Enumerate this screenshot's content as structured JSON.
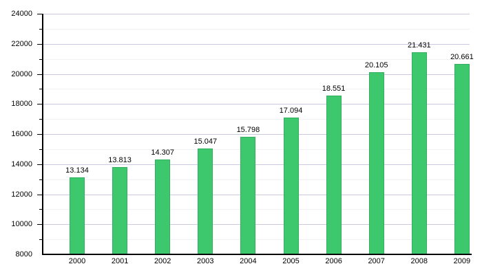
{
  "chart_data": {
    "type": "bar",
    "title": "",
    "xlabel": "",
    "ylabel": "",
    "categories": [
      "2000",
      "2001",
      "2002",
      "2003",
      "2004",
      "2005",
      "2006",
      "2007",
      "2008",
      "2009"
    ],
    "values": [
      13134,
      13813,
      14307,
      15047,
      15798,
      17094,
      18551,
      20105,
      21431,
      20661
    ],
    "value_labels": [
      "13.134",
      "13.813",
      "14.307",
      "15.047",
      "15.798",
      "17.094",
      "18.551",
      "20.105",
      "21.431",
      "20.661"
    ],
    "ylim": [
      8000,
      24000
    ],
    "ytick_step": 2000,
    "yminor_step": 1000,
    "ytick_labels": [
      "8000",
      "10000",
      "12000",
      "14000",
      "16000",
      "18000",
      "20000",
      "22000",
      "24000"
    ],
    "grid": "on",
    "legend": "none",
    "colors": {
      "bar_fill": "#3dc86e",
      "bar_border": "#31af5f",
      "grid_major": "#c9c9e2",
      "grid_minor": "#f0f0f5",
      "axis": "#000000",
      "text": "#000000",
      "background": "#ffffff"
    }
  }
}
